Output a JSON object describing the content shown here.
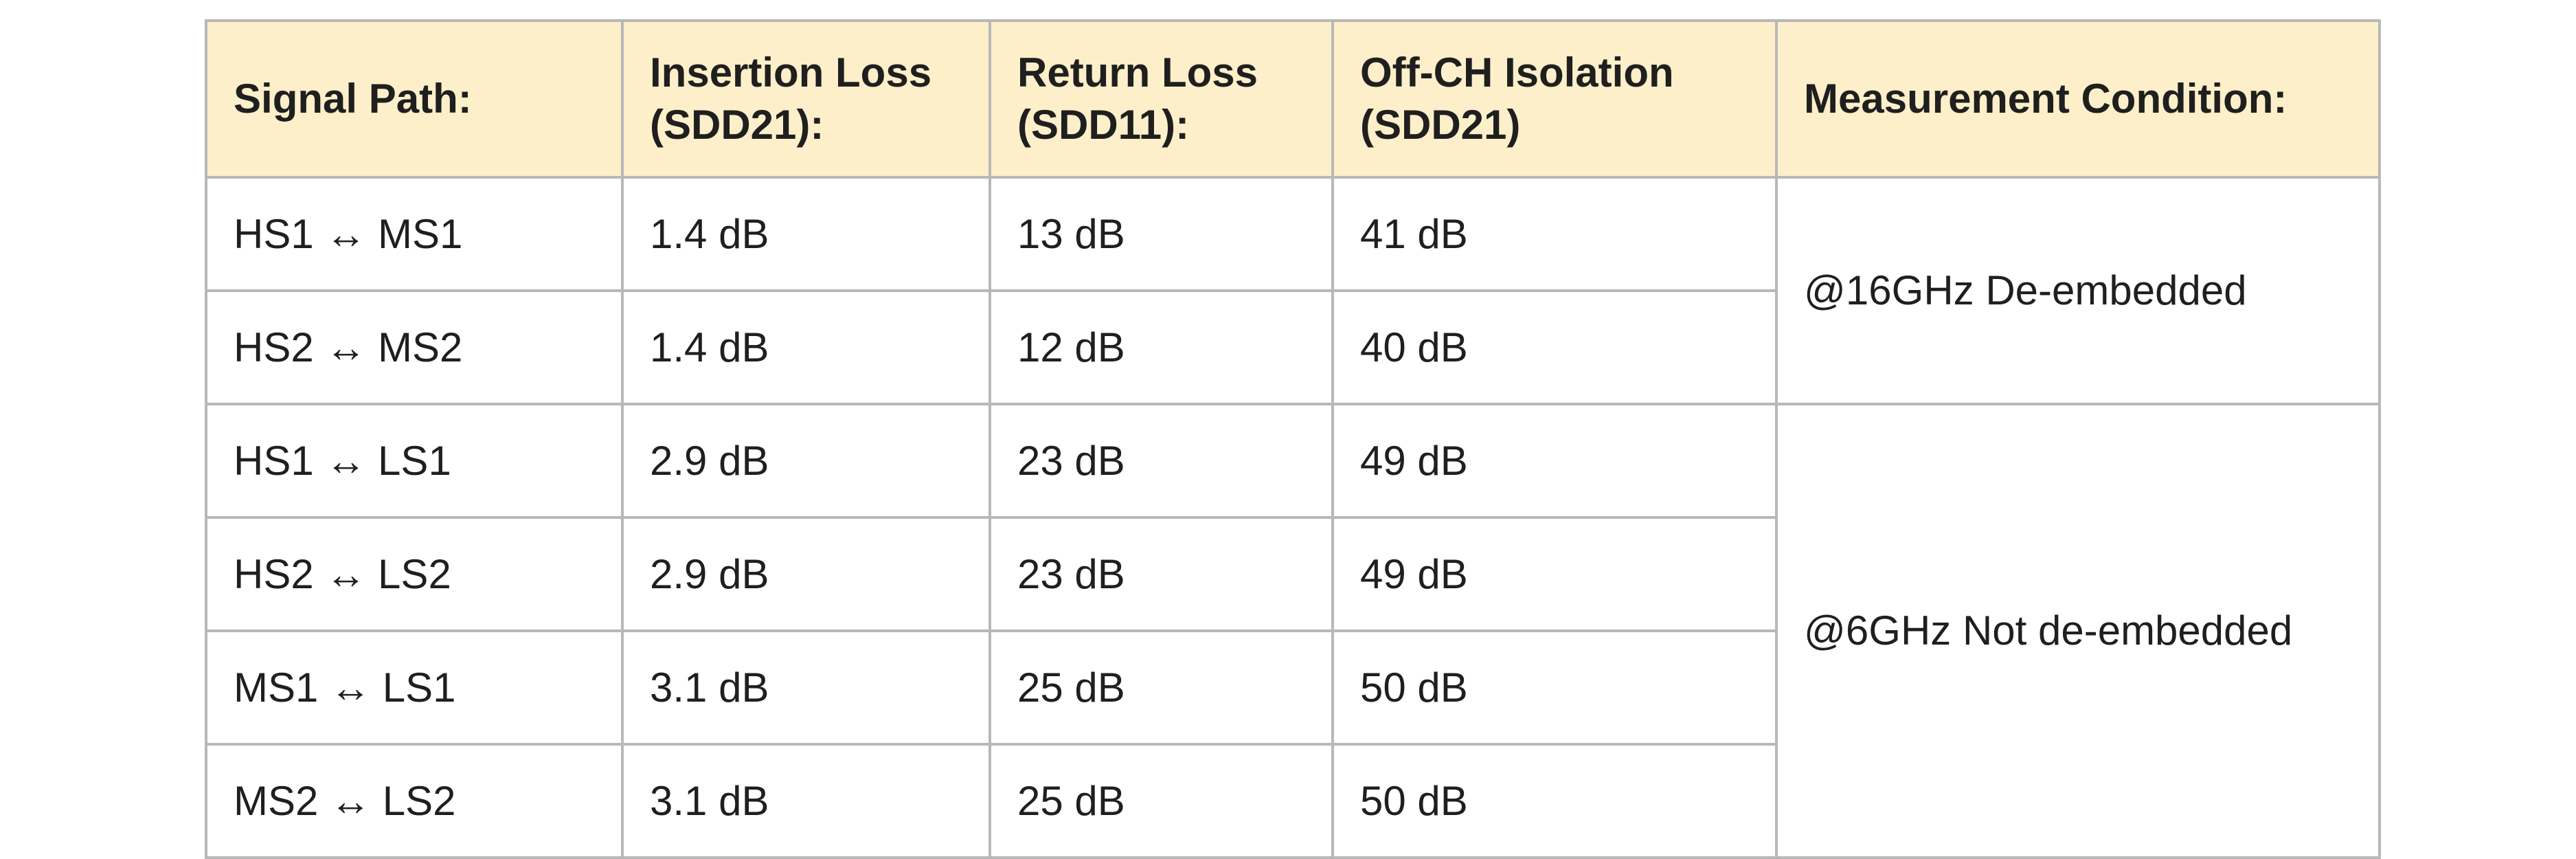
{
  "table": {
    "headers": {
      "signal_path": "Signal Path:",
      "insertion_loss_line1": "Insertion Loss",
      "insertion_loss_line2": "(SDD21):",
      "return_loss_line1": "Return Loss",
      "return_loss_line2": "(SDD11):",
      "isolation_line1": "Off-CH Isolation",
      "isolation_line2": "(SDD21)",
      "condition": "Measurement Condition:"
    },
    "rows": [
      {
        "path": "HS1 ↔ MS1",
        "insertion_loss": "1.4 dB",
        "return_loss": "13 dB",
        "isolation": "41 dB"
      },
      {
        "path": "HS2 ↔ MS2",
        "insertion_loss": "1.4 dB",
        "return_loss": "12 dB",
        "isolation": "40 dB"
      },
      {
        "path": "HS1 ↔ LS1",
        "insertion_loss": "2.9 dB",
        "return_loss": "23 dB",
        "isolation": "49 dB"
      },
      {
        "path": "HS2 ↔ LS2",
        "insertion_loss": "2.9 dB",
        "return_loss": "23 dB",
        "isolation": "49 dB"
      },
      {
        "path": "MS1 ↔ LS1",
        "insertion_loss": "3.1 dB",
        "return_loss": "25 dB",
        "isolation": "50 dB"
      },
      {
        "path": "MS2 ↔ LS2",
        "insertion_loss": "3.1 dB",
        "return_loss": "25 dB",
        "isolation": "50 dB"
      }
    ],
    "conditions": [
      "@16GHz De-embedded",
      "@6GHz Not de-embedded"
    ]
  },
  "colors": {
    "header_background": "#fdefc9",
    "border": "#b8b8b8",
    "text": "#1f1f1f"
  }
}
